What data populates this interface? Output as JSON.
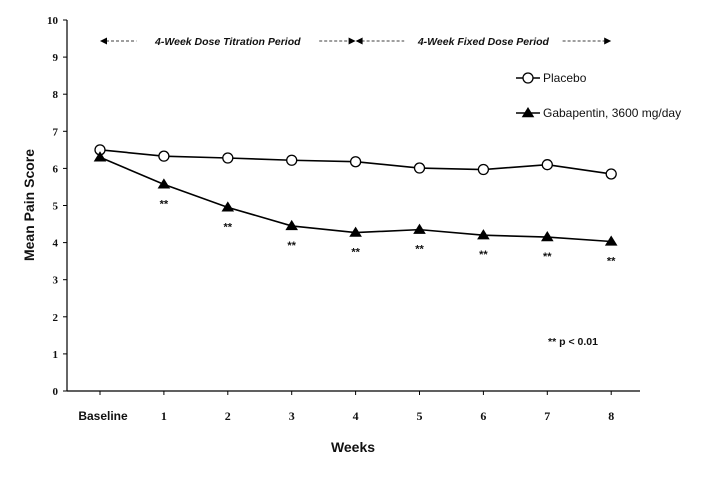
{
  "chart_data": {
    "type": "line",
    "xlabel": "Weeks",
    "ylabel": "Mean Pain Score",
    "categories": [
      "Baseline",
      "1",
      "2",
      "3",
      "4",
      "5",
      "6",
      "7",
      "8"
    ],
    "yticks": [
      "0",
      "1",
      "2",
      "3",
      "4",
      "5",
      "6",
      "7",
      "8",
      "9",
      "10"
    ],
    "ylim": [
      0,
      10
    ],
    "series": [
      {
        "name": "Placebo",
        "marker": "open-circle",
        "values": [
          6.5,
          6.33,
          6.28,
          6.22,
          6.18,
          6.01,
          5.97,
          6.1,
          5.85
        ]
      },
      {
        "name": "Gabapentin, 3600 mg/day",
        "marker": "filled-triangle",
        "values": [
          6.3,
          5.57,
          4.95,
          4.45,
          4.27,
          4.35,
          4.2,
          4.15,
          4.03
        ]
      }
    ],
    "periods": [
      {
        "label": "4-Week Dose Titration Period",
        "from": "Baseline",
        "to": "4"
      },
      {
        "label": "4-Week Fixed Dose Period",
        "from": "4",
        "to": "8"
      }
    ],
    "significance": {
      "marker": "**",
      "categories": [
        "1",
        "2",
        "3",
        "4",
        "5",
        "6",
        "7",
        "8"
      ],
      "note": "** p < 0.01"
    },
    "legend_position": "top-right",
    "grid": false,
    "colors": {
      "line": "#000000",
      "background": "#ffffff"
    }
  }
}
